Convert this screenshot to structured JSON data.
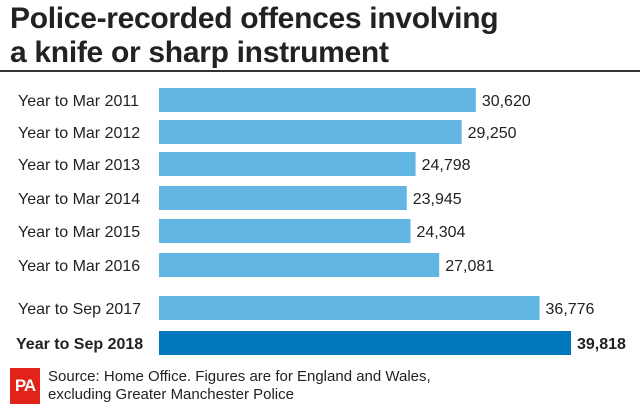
{
  "header": {
    "title_line1": "Police-recorded offences involving",
    "title_line2": "a knife or sharp instrument"
  },
  "chart_data": {
    "type": "bar",
    "orientation": "horizontal",
    "categories": [
      "Year to Mar 2011",
      "Year to Mar 2012",
      "Year to Mar 2013",
      "Year to Mar 2014",
      "Year to Mar 2015",
      "Year to Mar 2016",
      "Year to Sep 2017",
      "Year to Sep 2018"
    ],
    "values": [
      30620,
      29250,
      24798,
      23945,
      24304,
      27081,
      36776,
      39818
    ],
    "value_labels": [
      "30,620",
      "29,250",
      "24,798",
      "23,945",
      "24,304",
      "27,081",
      "36,776",
      "39,818"
    ],
    "highlight_category": "Year to Sep 2018",
    "xlim": [
      0,
      39818
    ],
    "grid": false,
    "legend": "none",
    "colors": {
      "bar": "#62b6e3",
      "highlight_bar": "#0077bb"
    }
  },
  "footer": {
    "logo_text": "PA",
    "logo_color": "#e2231a",
    "source_line1": "Source: Home Office. Figures are for England and Wales,",
    "source_line2": "excluding Greater Manchester Police"
  }
}
